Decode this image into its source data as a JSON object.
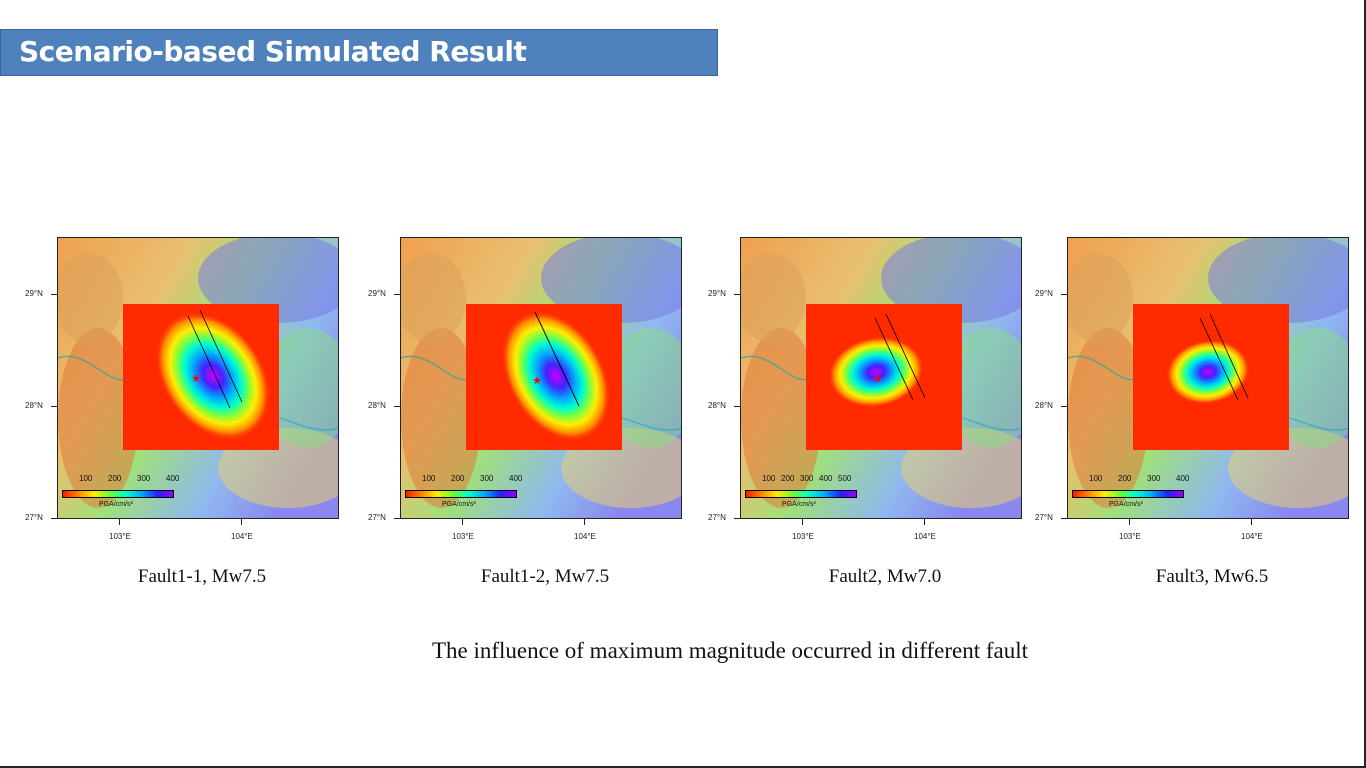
{
  "title": "Scenario-based Simulated Result",
  "bottom_caption": "The influence of maximum magnitude occurred in different fault",
  "colors": {
    "title_bg": "#4f81bd",
    "title_text": "#ffffff"
  },
  "panels": [
    {
      "caption": "Fault1-1, Mw7.5",
      "lat_labels": [
        "29°N",
        "28°N",
        "27°N"
      ],
      "lon_labels": [
        "103°E",
        "104°E"
      ],
      "legend_ticks": [
        "100",
        "200",
        "300",
        "400"
      ],
      "legend_unit": "PGA/cm/s²"
    },
    {
      "caption": "Fault1-2, Mw7.5",
      "lat_labels": [
        "29°N",
        "28°N",
        "27°N"
      ],
      "lon_labels": [
        "103°E",
        "104°E"
      ],
      "legend_ticks": [
        "100",
        "200",
        "300",
        "400"
      ],
      "legend_unit": "PGA/cm/s²"
    },
    {
      "caption": "Fault2, Mw7.0",
      "lat_labels": [
        "29°N",
        "28°N",
        "27°N"
      ],
      "lon_labels": [
        "103°E",
        "104°E"
      ],
      "legend_ticks": [
        "100",
        "200",
        "300",
        "400",
        "500"
      ],
      "legend_unit": "PGA/cm/s²"
    },
    {
      "caption": "Fault3, Mw6.5",
      "lat_labels": [
        "29°N",
        "28°N",
        "27°N"
      ],
      "lon_labels": [
        "103°E",
        "104°E"
      ],
      "legend_ticks": [
        "100",
        "200",
        "300",
        "400"
      ],
      "legend_unit": "PGA/cm/s²"
    }
  ]
}
